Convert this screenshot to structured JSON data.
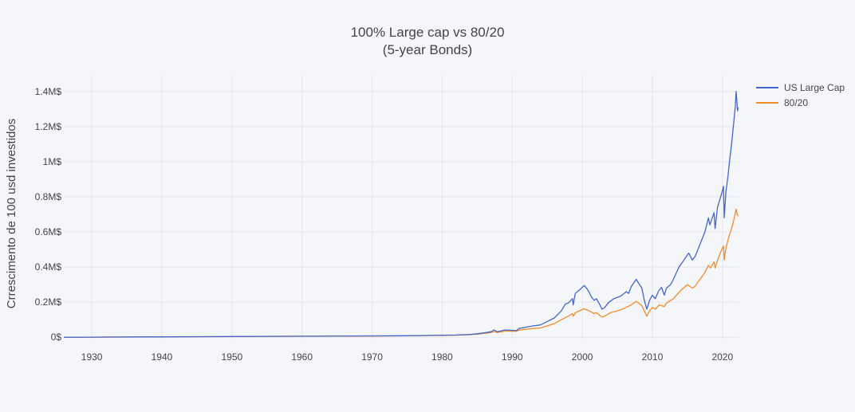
{
  "chart_data": {
    "type": "line",
    "title": "100% Large cap vs 80/20",
    "subtitle": "(5-year Bonds)",
    "ylabel": "Crrescimento de 100 usd investidos",
    "xlabel": "",
    "xlim": [
      1926,
      2022.3
    ],
    "ylim": [
      -8000,
      1490000
    ],
    "x_ticks": [
      1930,
      1940,
      1950,
      1960,
      1970,
      1980,
      1990,
      2000,
      2010,
      2020
    ],
    "x_tick_labels": [
      "1930",
      "1940",
      "1950",
      "1960",
      "1970",
      "1980",
      "1990",
      "2000",
      "2010",
      "2020"
    ],
    "y_ticks": [
      0,
      200000,
      400000,
      600000,
      800000,
      1000000,
      1200000,
      1400000
    ],
    "y_tick_labels": [
      "0$",
      "0.2M$",
      "0.4M$",
      "0.6M$",
      "0.8M$",
      "1M$",
      "1.2M$",
      "1.4M$"
    ],
    "grid": true,
    "legend_position": "top-right",
    "series": [
      {
        "name": "US Large Cap",
        "color": "#4466cc",
        "points": [
          [
            1926,
            100
          ],
          [
            1930,
            500
          ],
          [
            1936,
            1800
          ],
          [
            1940,
            2500
          ],
          [
            1950,
            4200
          ],
          [
            1960,
            6000
          ],
          [
            1970,
            8000
          ],
          [
            1975,
            9000
          ],
          [
            1980,
            12000
          ],
          [
            1982,
            13000
          ],
          [
            1984,
            16000
          ],
          [
            1985,
            20000
          ],
          [
            1986,
            25000
          ],
          [
            1987,
            32000
          ],
          [
            1987.4,
            42000
          ],
          [
            1987.9,
            30000
          ],
          [
            1988,
            33000
          ],
          [
            1989,
            42000
          ],
          [
            1990.6,
            38000
          ],
          [
            1991,
            50000
          ],
          [
            1992,
            58000
          ],
          [
            1993,
            65000
          ],
          [
            1994,
            70000
          ],
          [
            1995,
            90000
          ],
          [
            1996,
            110000
          ],
          [
            1997,
            150000
          ],
          [
            1997.6,
            190000
          ],
          [
            1998,
            195000
          ],
          [
            1998.6,
            220000
          ],
          [
            1998.7,
            185000
          ],
          [
            1999,
            250000
          ],
          [
            1999.6,
            270000
          ],
          [
            2000,
            285000
          ],
          [
            2000.3,
            295000
          ],
          [
            2000.7,
            275000
          ],
          [
            2001,
            255000
          ],
          [
            2001.3,
            230000
          ],
          [
            2001.7,
            210000
          ],
          [
            2002,
            220000
          ],
          [
            2002.5,
            185000
          ],
          [
            2002.8,
            160000
          ],
          [
            2003.2,
            170000
          ],
          [
            2003.8,
            200000
          ],
          [
            2004.5,
            220000
          ],
          [
            2005.5,
            235000
          ],
          [
            2006.3,
            260000
          ],
          [
            2006.6,
            250000
          ],
          [
            2007,
            290000
          ],
          [
            2007.7,
            330000
          ],
          [
            2008,
            310000
          ],
          [
            2008.5,
            280000
          ],
          [
            2008.8,
            220000
          ],
          [
            2009.2,
            160000
          ],
          [
            2009.6,
            210000
          ],
          [
            2010,
            240000
          ],
          [
            2010.4,
            220000
          ],
          [
            2010.9,
            265000
          ],
          [
            2011.3,
            285000
          ],
          [
            2011.7,
            240000
          ],
          [
            2012,
            280000
          ],
          [
            2012.6,
            300000
          ],
          [
            2013,
            330000
          ],
          [
            2013.8,
            400000
          ],
          [
            2014.5,
            440000
          ],
          [
            2015.2,
            480000
          ],
          [
            2015.7,
            440000
          ],
          [
            2016.1,
            460000
          ],
          [
            2016.6,
            510000
          ],
          [
            2017,
            550000
          ],
          [
            2017.5,
            600000
          ],
          [
            2018,
            680000
          ],
          [
            2018.2,
            640000
          ],
          [
            2018.8,
            710000
          ],
          [
            2018.95,
            620000
          ],
          [
            2019.3,
            740000
          ],
          [
            2019.9,
            820000
          ],
          [
            2020.15,
            860000
          ],
          [
            2020.25,
            680000
          ],
          [
            2020.5,
            830000
          ],
          [
            2020.8,
            920000
          ],
          [
            2021,
            1000000
          ],
          [
            2021.3,
            1100000
          ],
          [
            2021.6,
            1220000
          ],
          [
            2021.85,
            1320000
          ],
          [
            2021.95,
            1400000
          ],
          [
            2022.05,
            1350000
          ],
          [
            2022.15,
            1290000
          ],
          [
            2022.25,
            1310000
          ]
        ]
      },
      {
        "name": "80/20",
        "color": "#f28c28",
        "points": [
          [
            1926,
            100
          ],
          [
            1930,
            500
          ],
          [
            1936,
            1700
          ],
          [
            1940,
            2300
          ],
          [
            1950,
            3800
          ],
          [
            1960,
            5500
          ],
          [
            1970,
            7000
          ],
          [
            1975,
            8500
          ],
          [
            1980,
            10500
          ],
          [
            1982,
            12000
          ],
          [
            1984,
            15000
          ],
          [
            1985,
            18000
          ],
          [
            1986,
            22000
          ],
          [
            1987,
            27000
          ],
          [
            1987.4,
            33000
          ],
          [
            1987.9,
            27000
          ],
          [
            1988,
            29000
          ],
          [
            1989,
            35000
          ],
          [
            1990.6,
            34000
          ],
          [
            1991,
            40000
          ],
          [
            1992,
            46000
          ],
          [
            1993,
            50000
          ],
          [
            1994,
            53000
          ],
          [
            1995,
            65000
          ],
          [
            1996,
            78000
          ],
          [
            1997,
            100000
          ],
          [
            1998,
            120000
          ],
          [
            1998.6,
            135000
          ],
          [
            1998.7,
            120000
          ],
          [
            1999,
            140000
          ],
          [
            2000,
            158000
          ],
          [
            2000.3,
            162000
          ],
          [
            2001,
            150000
          ],
          [
            2001.7,
            135000
          ],
          [
            2002,
            140000
          ],
          [
            2002.8,
            115000
          ],
          [
            2003.2,
            120000
          ],
          [
            2004,
            140000
          ],
          [
            2005,
            150000
          ],
          [
            2006,
            165000
          ],
          [
            2007,
            185000
          ],
          [
            2007.7,
            205000
          ],
          [
            2008.5,
            180000
          ],
          [
            2009.2,
            120000
          ],
          [
            2009.6,
            150000
          ],
          [
            2010,
            170000
          ],
          [
            2010.4,
            160000
          ],
          [
            2011,
            185000
          ],
          [
            2011.7,
            175000
          ],
          [
            2012,
            195000
          ],
          [
            2013,
            220000
          ],
          [
            2014,
            265000
          ],
          [
            2015,
            300000
          ],
          [
            2015.7,
            280000
          ],
          [
            2016.1,
            290000
          ],
          [
            2016.6,
            320000
          ],
          [
            2017,
            340000
          ],
          [
            2017.5,
            370000
          ],
          [
            2018,
            410000
          ],
          [
            2018.3,
            395000
          ],
          [
            2018.8,
            430000
          ],
          [
            2018.95,
            395000
          ],
          [
            2019.4,
            450000
          ],
          [
            2019.9,
            500000
          ],
          [
            2020.15,
            520000
          ],
          [
            2020.25,
            440000
          ],
          [
            2020.5,
            510000
          ],
          [
            2020.9,
            570000
          ],
          [
            2021.3,
            620000
          ],
          [
            2021.7,
            680000
          ],
          [
            2021.95,
            730000
          ],
          [
            2022.1,
            700000
          ],
          [
            2022.25,
            690000
          ]
        ]
      }
    ]
  }
}
